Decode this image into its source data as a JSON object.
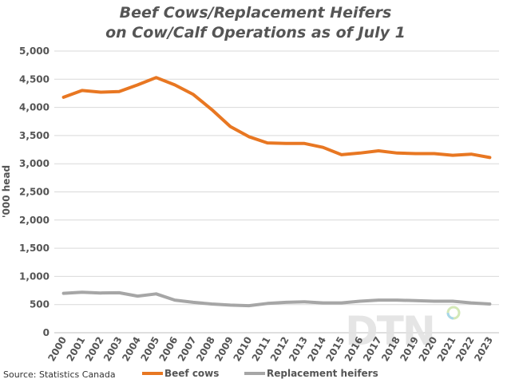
{
  "chart_data": {
    "type": "line",
    "title_lines": [
      "Beef Cows/Replacement Heifers",
      "on Cow/Calf Operations as of July 1"
    ],
    "ylabel": "'000 head",
    "ylim": [
      0,
      5000
    ],
    "yticks": [
      "0",
      "500",
      "1,000",
      "1,500",
      "2,000",
      "2,500",
      "3,000",
      "3,500",
      "4,000",
      "4,500",
      "5,000"
    ],
    "ytick_values": [
      0,
      500,
      1000,
      1500,
      2000,
      2500,
      3000,
      3500,
      4000,
      4500,
      5000
    ],
    "categories": [
      "2000",
      "2001",
      "2002",
      "2003",
      "2004",
      "2005",
      "2006",
      "2007",
      "2008",
      "2009",
      "2010",
      "2011",
      "2012",
      "2013",
      "2014",
      "2015",
      "2016",
      "2017",
      "2018",
      "2019",
      "2020",
      "2021",
      "2022",
      "2023"
    ],
    "series": [
      {
        "name": "Beef cows",
        "color": "#e87722",
        "values": [
          4180,
          4300,
          4270,
          4280,
          4400,
          4530,
          4400,
          4230,
          3960,
          3660,
          3480,
          3370,
          3360,
          3360,
          3290,
          3160,
          3190,
          3230,
          3190,
          3180,
          3180,
          3150,
          3170,
          3110
        ]
      },
      {
        "name": "Replacement heifers",
        "color": "#a6a6a6",
        "values": [
          700,
          720,
          705,
          710,
          650,
          690,
          580,
          540,
          510,
          490,
          480,
          520,
          540,
          550,
          530,
          530,
          560,
          580,
          580,
          570,
          560,
          560,
          530,
          510
        ]
      }
    ],
    "grid": "horizontal",
    "legend": "bottom"
  },
  "source": "Source: Statistics Canada",
  "logo_text": "DTN"
}
